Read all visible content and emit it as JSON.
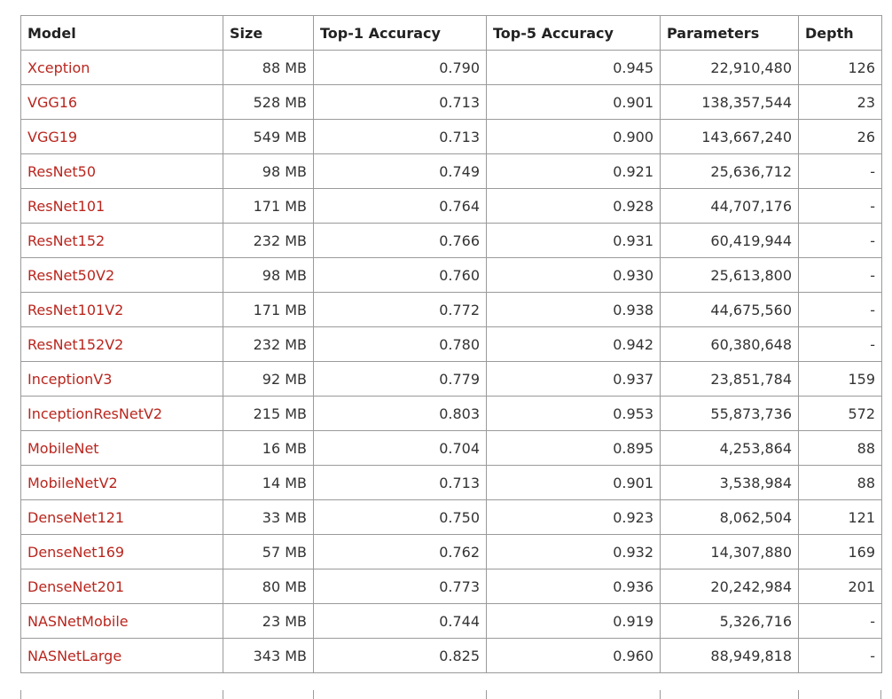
{
  "table": {
    "header": [
      "Model",
      "Size",
      "Top-1 Accuracy",
      "Top-5 Accuracy",
      "Parameters",
      "Depth"
    ],
    "rows": [
      [
        "Xception",
        "88 MB",
        "0.790",
        "0.945",
        "22,910,480",
        "126"
      ],
      [
        "VGG16",
        "528 MB",
        "0.713",
        "0.901",
        "138,357,544",
        "23"
      ],
      [
        "VGG19",
        "549 MB",
        "0.713",
        "0.900",
        "143,667,240",
        "26"
      ],
      [
        "ResNet50",
        "98 MB",
        "0.749",
        "0.921",
        "25,636,712",
        "-"
      ],
      [
        "ResNet101",
        "171 MB",
        "0.764",
        "0.928",
        "44,707,176",
        "-"
      ],
      [
        "ResNet152",
        "232 MB",
        "0.766",
        "0.931",
        "60,419,944",
        "-"
      ],
      [
        "ResNet50V2",
        "98 MB",
        "0.760",
        "0.930",
        "25,613,800",
        "-"
      ],
      [
        "ResNet101V2",
        "171 MB",
        "0.772",
        "0.938",
        "44,675,560",
        "-"
      ],
      [
        "ResNet152V2",
        "232 MB",
        "0.780",
        "0.942",
        "60,380,648",
        "-"
      ],
      [
        "InceptionV3",
        "92 MB",
        "0.779",
        "0.937",
        "23,851,784",
        "159"
      ],
      [
        "InceptionResNetV2",
        "215 MB",
        "0.803",
        "0.953",
        "55,873,736",
        "572"
      ],
      [
        "MobileNet",
        "16 MB",
        "0.704",
        "0.895",
        "4,253,864",
        "88"
      ],
      [
        "MobileNetV2",
        "14 MB",
        "0.713",
        "0.901",
        "3,538,984",
        "88"
      ],
      [
        "DenseNet121",
        "33 MB",
        "0.750",
        "0.923",
        "8,062,504",
        "121"
      ],
      [
        "DenseNet169",
        "57 MB",
        "0.762",
        "0.932",
        "14,307,880",
        "169"
      ],
      [
        "DenseNet201",
        "80 MB",
        "0.773",
        "0.936",
        "20,242,984",
        "201"
      ],
      [
        "NASNetMobile",
        "23 MB",
        "0.744",
        "0.919",
        "5,326,716",
        "-"
      ],
      [
        "NASNetLarge",
        "343 MB",
        "0.825",
        "0.960",
        "88,949,818",
        "-"
      ]
    ]
  }
}
